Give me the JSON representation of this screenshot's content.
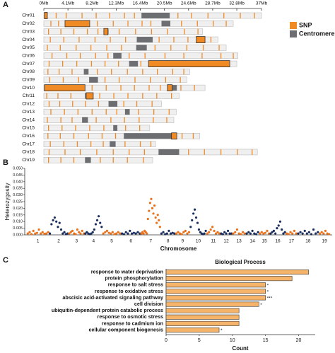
{
  "chart_data": [
    {
      "type": "ideogram",
      "panel": "A",
      "xlim": [
        0,
        37
      ],
      "xticks": [
        {
          "value": 0,
          "label": "0Mb"
        },
        {
          "value": 4.1,
          "label": "4.1Mb"
        },
        {
          "value": 8.2,
          "label": "8.2Mb"
        },
        {
          "value": 12.3,
          "label": "12.3Mb"
        },
        {
          "value": 16.4,
          "label": "16.4Mb"
        },
        {
          "value": 20.5,
          "label": "20.5Mb"
        },
        {
          "value": 24.6,
          "label": "24.6Mb"
        },
        {
          "value": 28.7,
          "label": "28.7Mb"
        },
        {
          "value": 32.8,
          "label": "32.8Mb"
        },
        {
          "value": 37,
          "label": "37Mb"
        }
      ],
      "categories": [
        "Chr01",
        "Chr02",
        "Chr03",
        "Chr04",
        "Chr05",
        "Chr06",
        "Chr07",
        "Chr08",
        "Chr09",
        "Chr10",
        "Chr11",
        "Chr12",
        "Chr13",
        "Chr14",
        "Chr15",
        "Chr16",
        "Chr17",
        "Chr18",
        "Chr19"
      ],
      "lengths": [
        37,
        32.2,
        27,
        29.6,
        31,
        33,
        32.8,
        24.8,
        24.3,
        27.4,
        23,
        20,
        22.5,
        22.1,
        18,
        26.5,
        19,
        36.3,
        18.5
      ],
      "centromeres": [
        [
          16.6,
          21.4
        ],
        [
          20.0,
          21.5
        ],
        [
          10.2,
          11.0
        ],
        [
          15.8,
          18.5
        ],
        [
          15.7,
          17.5
        ],
        [
          11.8,
          13.2
        ],
        [
          14.5,
          16.0
        ],
        [
          6.8,
          7.6
        ],
        [
          7.7,
          9.2
        ],
        [
          21.8,
          22.6
        ],
        [
          7.0,
          8.4
        ],
        [
          11.0,
          12.5
        ],
        [
          13.8,
          14.6
        ],
        [
          6.5,
          7.5
        ],
        [
          11.8,
          12.5
        ],
        [
          13.6,
          21.7
        ],
        [
          11.2,
          12.2
        ],
        [
          19.5,
          23.0
        ],
        [
          7.0,
          8.0
        ]
      ],
      "snps": [
        [
          0.3,
          2.1,
          3.8,
          6.5,
          8.9,
          11.2,
          13.7,
          15.4,
          22.8,
          25.1,
          27.9,
          30.6,
          33.4,
          35.8
        ],
        [
          1.2,
          2.5,
          9.1,
          11.8,
          14.3,
          16.7,
          18.2,
          23.4,
          26.1,
          28.8,
          31.0
        ],
        [
          0.8,
          2.9,
          5.1,
          7.4,
          9.2,
          12.8,
          15.6,
          18.3,
          21.0,
          23.9,
          26.2
        ],
        [
          1.1,
          3.4,
          6.0,
          8.7,
          11.3,
          13.9,
          19.6,
          22.1,
          24.5,
          28.4
        ],
        [
          0.6,
          2.8,
          5.5,
          8.0,
          10.7,
          13.2,
          18.9,
          21.6,
          24.3,
          27.1,
          29.8
        ],
        [
          1.4,
          3.9,
          6.2,
          8.8,
          10.9,
          14.5,
          17.2,
          20.6,
          23.8,
          26.9,
          30.1,
          32.2
        ],
        [
          0.9,
          3.2,
          5.6,
          8.1,
          10.4,
          12.7,
          16.5
        ],
        [
          0.7,
          2.6,
          4.8,
          9.1,
          11.5,
          14.2,
          16.8,
          19.3,
          21.9,
          23.8
        ],
        [
          1.0,
          3.3,
          5.9,
          10.4,
          12.8,
          15.5,
          18.1,
          20.7,
          23.2
        ],
        [
          8.2,
          10.6,
          13.1,
          15.4,
          17.9,
          19.8,
          23.3,
          25.6
        ],
        [
          0.5,
          2.4,
          4.6,
          9.5,
          11.9,
          14.3,
          16.8,
          19.2,
          21.7
        ],
        [
          0.9,
          2.7,
          4.9,
          7.1,
          9.3,
          13.6,
          15.8,
          18.4
        ],
        [
          1.2,
          3.5,
          5.8,
          8.2,
          10.6,
          12.4,
          16.1,
          18.7,
          21.3
        ],
        [
          0.6,
          2.9,
          4.8,
          8.9,
          11.4,
          13.7,
          16.2,
          18.6,
          20.9
        ],
        [
          0.8,
          3.1,
          5.4,
          7.8,
          10.2,
          13.9,
          16.3
        ],
        [
          0.7,
          2.8,
          5.1,
          7.6,
          9.9,
          12.2,
          23.5,
          25.4
        ],
        [
          1.1,
          3.4,
          5.7,
          8.0,
          10.1,
          13.8,
          16.4,
          18.2
        ],
        [
          0.9,
          3.6,
          6.2,
          9.0,
          11.8,
          14.5,
          17.1,
          24.6,
          27.3,
          30.1,
          32.9,
          35.4
        ],
        [
          0.8,
          2.9,
          5.1,
          9.6,
          11.8,
          14.2,
          16.9
        ]
      ],
      "highlights": [
        {
          "chromosome": "Chr01",
          "range": [
            0.1,
            0.6
          ]
        },
        {
          "chromosome": "Chr02",
          "range": [
            3.6,
            7.8
          ]
        },
        {
          "chromosome": "Chr03",
          "range": [
            10.2,
            10.9
          ]
        },
        {
          "chromosome": "Chr04",
          "range": [
            25.9,
            27.4
          ]
        },
        {
          "chromosome": "Chr07",
          "range": [
            17.8,
            31.6
          ]
        },
        {
          "chromosome": "Chr10",
          "range": [
            0.1,
            7.0
          ]
        },
        {
          "chromosome": "Chr10",
          "range": [
            21.0,
            21.8
          ]
        },
        {
          "chromosome": "Chr11",
          "range": [
            7.2,
            8.4
          ]
        },
        {
          "chromosome": "Chr16",
          "range": [
            21.7,
            22.6
          ]
        }
      ],
      "legend": [
        {
          "name": "SNP",
          "color": "#f08a24"
        },
        {
          "name": "Centromere",
          "color": "#6d6e71"
        }
      ]
    },
    {
      "type": "scatter",
      "panel": "B",
      "ylabel": "Heterozygosity",
      "xlabel": "Chromosome",
      "ylim": [
        0,
        0.05
      ],
      "yticks": [
        {
          "value": 0,
          "label": "0.000"
        },
        {
          "value": 0.005,
          "label": "0.005"
        },
        {
          "value": 0.01,
          "label": "0.010"
        },
        {
          "value": 0.015,
          "label": "0.015"
        },
        {
          "value": 0.02,
          "label": "0.020"
        },
        {
          "value": 0.025,
          "label": "0.025"
        },
        {
          "value": 0.03,
          "label": "0.030"
        },
        {
          "value": 0.035,
          "label": "0.035"
        },
        {
          "value": 0.04,
          "label": "0.040"
        },
        {
          "value": 0.045,
          "label": "0.045"
        },
        {
          "value": 0.05,
          "label": "0.050"
        }
      ],
      "series": [
        {
          "name": "1",
          "color": "#e8711c",
          "values": [
            0.001,
            0.002,
            0.0005,
            0.003,
            0.001,
            0.0015,
            0.004,
            0.001,
            0.002,
            0.0008,
            0.001,
            0.002
          ]
        },
        {
          "name": "2",
          "color": "#1b2f5e",
          "values": [
            0.001,
            0.008,
            0.011,
            0.013,
            0.01,
            0.006,
            0.009,
            0.004,
            0.001,
            0.002,
            0.0005,
            0.001
          ]
        },
        {
          "name": "3",
          "color": "#e8711c",
          "values": [
            0.001,
            0.002,
            0.003,
            0.001,
            0.0005,
            0.004,
            0.002,
            0.001,
            0.003,
            0.001
          ]
        },
        {
          "name": "4",
          "color": "#1b2f5e",
          "values": [
            0.001,
            0.002,
            0.001,
            0.0005,
            0.001,
            0.002,
            0.004,
            0.008,
            0.011,
            0.014,
            0.009,
            0.006
          ]
        },
        {
          "name": "5",
          "color": "#e8711c",
          "values": [
            0.001,
            0.002,
            0.003,
            0.0015,
            0.001,
            0.002,
            0.0005,
            0.001,
            0.002,
            0.001
          ]
        },
        {
          "name": "6",
          "color": "#1b2f5e",
          "values": [
            0.001,
            0.0005,
            0.002,
            0.001,
            0.003,
            0.001,
            0.0015,
            0.001,
            0.002,
            0.001
          ]
        },
        {
          "name": "7",
          "color": "#e8711c",
          "values": [
            0.001,
            0.002,
            0.001,
            0.003,
            0.002,
            0.001,
            0.012,
            0.018,
            0.024,
            0.027,
            0.02,
            0.016,
            0.022,
            0.013,
            0.009,
            0.015,
            0.011,
            0.006
          ]
        },
        {
          "name": "8",
          "color": "#1b2f5e",
          "values": [
            0.001,
            0.002,
            0.0005,
            0.001,
            0.003,
            0.001,
            0.0015,
            0.001
          ]
        },
        {
          "name": "9",
          "color": "#e8711c",
          "values": [
            0.001,
            0.002,
            0.001,
            0.0005,
            0.002,
            0.003,
            0.001,
            0.002
          ]
        },
        {
          "name": "10",
          "color": "#1b2f5e",
          "values": [
            0.006,
            0.011,
            0.016,
            0.019,
            0.013,
            0.009,
            0.004,
            0.002,
            0.001,
            0.0005,
            0.001,
            0.003
          ]
        },
        {
          "name": "11",
          "color": "#e8711c",
          "values": [
            0.001,
            0.002,
            0.004,
            0.006,
            0.003,
            0.001,
            0.002,
            0.001
          ]
        },
        {
          "name": "12",
          "color": "#1b2f5e",
          "values": [
            0.001,
            0.0005,
            0.002,
            0.001,
            0.003,
            0.001,
            0.001
          ]
        },
        {
          "name": "13",
          "color": "#e8711c",
          "values": [
            0.001,
            0.002,
            0.004,
            0.001,
            0.0005,
            0.002,
            0.001
          ]
        },
        {
          "name": "14",
          "color": "#1b2f5e",
          "values": [
            0.001,
            0.002,
            0.001,
            0.003,
            0.001,
            0.0005,
            0.002
          ]
        },
        {
          "name": "15",
          "color": "#e8711c",
          "values": [
            0.001,
            0.002,
            0.001,
            0.0015,
            0.003,
            0.001
          ]
        },
        {
          "name": "16",
          "color": "#1b2f5e",
          "values": [
            0.001,
            0.002,
            0.003,
            0.001,
            0.005,
            0.007,
            0.01,
            0.004,
            0.001,
            0.002
          ]
        },
        {
          "name": "17",
          "color": "#e8711c",
          "values": [
            0.001,
            0.0005,
            0.002,
            0.001,
            0.003,
            0.001
          ]
        },
        {
          "name": "18",
          "color": "#1b2f5e",
          "values": [
            0.001,
            0.002,
            0.001,
            0.003,
            0.001,
            0.002,
            0.0005,
            0.004,
            0.001,
            0.002
          ]
        },
        {
          "name": "19",
          "color": "#e8711c",
          "values": [
            0.001,
            0.002,
            0.001,
            0.003,
            0.001,
            0.0005
          ]
        }
      ]
    },
    {
      "type": "hbar",
      "panel": "C",
      "title": "Biological Process",
      "xlabel": "Count",
      "color": "#f5b469",
      "categories": [
        "response to water deprivation",
        "protein phosphorylation",
        "response to salt stress",
        "response to oxidative stress",
        "abscisic acid-activated signaling pathway",
        "cell division",
        "ubiquitin-dependent protein catabolic process",
        "response to osmotic stress",
        "response to cadmium ion",
        "cellular component biogenesis"
      ],
      "values": [
        21.5,
        19,
        15,
        15,
        15,
        14,
        11,
        11,
        11,
        8
      ],
      "annotations": [
        null,
        null,
        "*",
        "*",
        "***",
        "*",
        null,
        null,
        null,
        "*"
      ],
      "xlim": [
        0,
        22.5
      ],
      "xticks": [
        0,
        5,
        10,
        15,
        20
      ]
    }
  ]
}
